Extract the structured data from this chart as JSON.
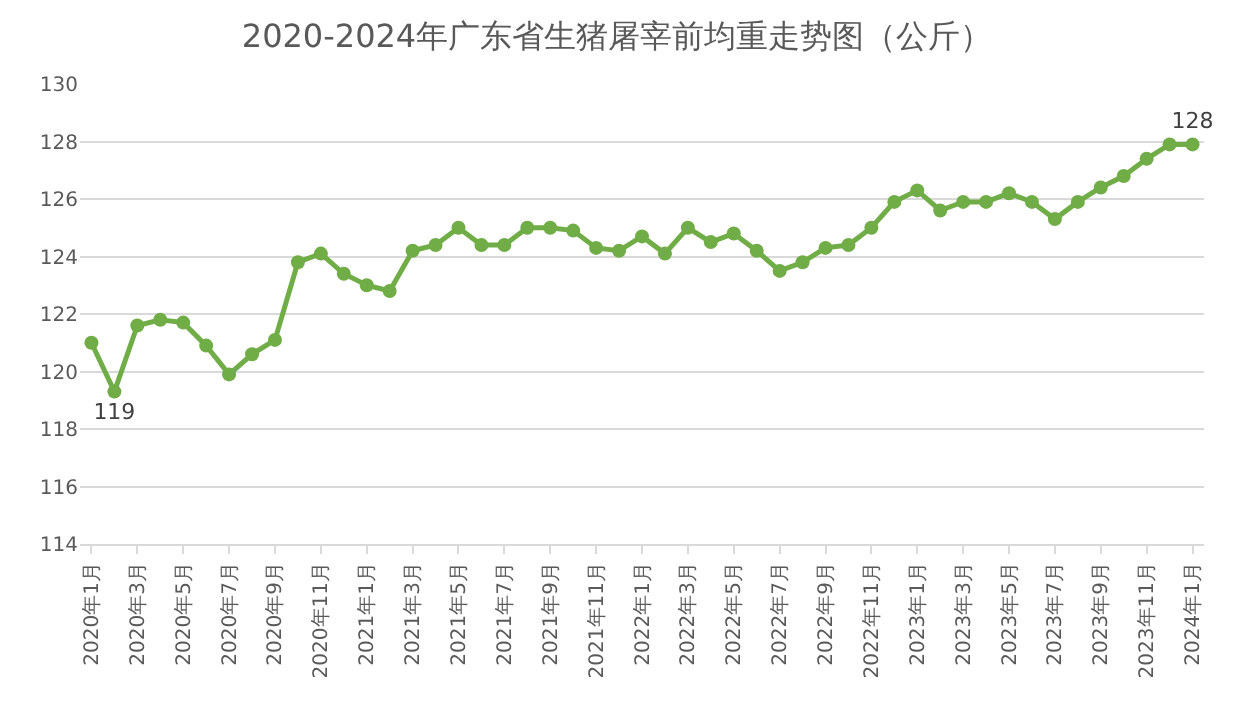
{
  "chart_data": {
    "type": "line",
    "title": "2020-2024年广东省生猪屠宰前均重走势图（公斤）",
    "categories": [
      "2020年1月",
      null,
      "2020年3月",
      null,
      "2020年5月",
      null,
      "2020年7月",
      null,
      "2020年9月",
      null,
      "2020年11月",
      null,
      "2021年1月",
      null,
      "2021年3月",
      null,
      "2021年5月",
      null,
      "2021年7月",
      null,
      "2021年9月",
      null,
      "2021年11月",
      null,
      "2022年1月",
      null,
      "2022年3月",
      null,
      "2022年5月",
      null,
      "2022年7月",
      null,
      "2022年9月",
      null,
      "2022年11月",
      null,
      "2023年1月",
      null,
      "2023年3月",
      null,
      "2023年5月",
      null,
      "2023年7月",
      null,
      "2023年9月",
      null,
      "2023年11月",
      null,
      "2024年1月"
    ],
    "series": [
      {
        "color": "#70ad47",
        "values": [
          121.0,
          119.3,
          121.6,
          121.8,
          121.7,
          120.9,
          119.9,
          120.6,
          121.1,
          123.8,
          124.1,
          123.4,
          123.0,
          122.8,
          124.2,
          124.4,
          125.0,
          124.4,
          124.4,
          125.0,
          125.0,
          124.9,
          124.3,
          124.2,
          124.7,
          124.1,
          125.0,
          124.5,
          124.8,
          124.2,
          123.5,
          123.8,
          124.3,
          124.4,
          125.0,
          125.9,
          126.3,
          125.6,
          125.9,
          125.9,
          126.2,
          125.9,
          125.3,
          125.9,
          126.4,
          126.8,
          127.4,
          127.9,
          127.9
        ],
        "value_labels": [
          null,
          "119",
          null,
          null,
          null,
          null,
          null,
          null,
          null,
          null,
          null,
          null,
          null,
          null,
          null,
          null,
          null,
          null,
          null,
          null,
          null,
          null,
          null,
          null,
          null,
          null,
          null,
          null,
          null,
          null,
          null,
          null,
          null,
          null,
          null,
          null,
          null,
          null,
          null,
          null,
          null,
          null,
          null,
          null,
          null,
          null,
          null,
          null,
          "128"
        ]
      }
    ],
    "ylim": [
      114,
      130
    ],
    "yticks": [
      114,
      116,
      118,
      120,
      122,
      124,
      126,
      128,
      130
    ],
    "grid": "y",
    "legend": false,
    "marker": "circle",
    "line_style": "solid"
  }
}
